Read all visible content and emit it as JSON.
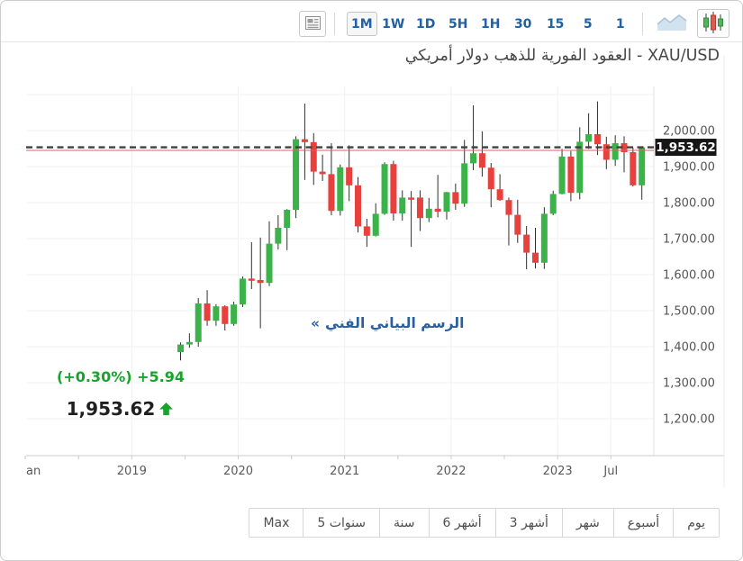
{
  "title": "XAU/USD - العقود الفورية للذهب دولار أمريكي",
  "toolbar": {
    "timeframes": [
      "1M",
      "1W",
      "1D",
      "5H",
      "1H",
      "30",
      "15",
      "5",
      "1"
    ],
    "active_timeframe": "1M",
    "chart_type_icons": [
      "news-icon",
      "area-chart-icon",
      "candlestick-icon"
    ],
    "active_chart_type": "candlestick-icon",
    "accent_color": "#2060a3"
  },
  "quote": {
    "change_percent": "(+0.30%)",
    "change": "+5.94",
    "last_price": "1,953.62",
    "up_color": "#18a42b"
  },
  "technical_link": {
    "arrow": "«",
    "text": "الرسم البياني الفني"
  },
  "price_tag": "1,953.62",
  "range_buttons": [
    "Max",
    "5 سنوات",
    "سنة",
    "6 أشهر",
    "3 أشهر",
    "شهر",
    "أسبوع",
    "يوم"
  ],
  "chart_data": {
    "type": "candlestick",
    "symbol": "XAU/USD",
    "interval": "monthly",
    "up_color": "#3bb34a",
    "down_color": "#e8403c",
    "current_price": 1953.62,
    "ylim": [
      1150,
      2110
    ],
    "y_ticks": [
      2000,
      1900,
      1800,
      1700,
      1600,
      1500,
      1400,
      1300,
      1200
    ],
    "x_ticks": [
      {
        "i": -17,
        "label": "an"
      },
      {
        "i": -5,
        "label": "2019"
      },
      {
        "i": 7,
        "label": "2020"
      },
      {
        "i": 19,
        "label": "2021"
      },
      {
        "i": 31,
        "label": "2022"
      },
      {
        "i": 43,
        "label": "2023"
      },
      {
        "i": 49,
        "label": "Jul"
      }
    ],
    "minor_tick_i": [
      -11,
      1,
      13,
      25,
      37
    ],
    "grid": true,
    "months": [
      "2019-06",
      "2019-07",
      "2019-08",
      "2019-09",
      "2019-10",
      "2019-11",
      "2019-12",
      "2020-01",
      "2020-02",
      "2020-03",
      "2020-04",
      "2020-05",
      "2020-06",
      "2020-07",
      "2020-08",
      "2020-09",
      "2020-10",
      "2020-11",
      "2020-12",
      "2021-01",
      "2021-02",
      "2021-03",
      "2021-04",
      "2021-05",
      "2021-06",
      "2021-07",
      "2021-08",
      "2021-09",
      "2021-10",
      "2021-11",
      "2021-12",
      "2022-01",
      "2022-02",
      "2022-03",
      "2022-04",
      "2022-05",
      "2022-06",
      "2022-07",
      "2022-08",
      "2022-09",
      "2022-10",
      "2022-11",
      "2022-12",
      "2023-01",
      "2023-02",
      "2023-03",
      "2023-04",
      "2023-05",
      "2023-06",
      "2023-07",
      "2023-08",
      "2023-09",
      "2023-10"
    ],
    "ohlc": [
      [
        1385,
        1412,
        1362,
        1406
      ],
      [
        1406,
        1437,
        1397,
        1413
      ],
      [
        1413,
        1535,
        1400,
        1520
      ],
      [
        1520,
        1557,
        1458,
        1472
      ],
      [
        1472,
        1518,
        1458,
        1512
      ],
      [
        1512,
        1515,
        1445,
        1463
      ],
      [
        1463,
        1525,
        1458,
        1517
      ],
      [
        1517,
        1595,
        1510,
        1589
      ],
      [
        1589,
        1690,
        1560,
        1585
      ],
      [
        1585,
        1703,
        1451,
        1577
      ],
      [
        1577,
        1748,
        1568,
        1686
      ],
      [
        1686,
        1765,
        1670,
        1730
      ],
      [
        1730,
        1782,
        1668,
        1780
      ],
      [
        1780,
        1984,
        1757,
        1976
      ],
      [
        1976,
        2075,
        1863,
        1968
      ],
      [
        1968,
        1993,
        1849,
        1886
      ],
      [
        1886,
        1933,
        1860,
        1879
      ],
      [
        1879,
        1965,
        1765,
        1777
      ],
      [
        1777,
        1906,
        1764,
        1898
      ],
      [
        1898,
        1959,
        1804,
        1848
      ],
      [
        1848,
        1871,
        1717,
        1734
      ],
      [
        1734,
        1755,
        1677,
        1708
      ],
      [
        1708,
        1798,
        1706,
        1769
      ],
      [
        1769,
        1912,
        1766,
        1907
      ],
      [
        1907,
        1916,
        1750,
        1770
      ],
      [
        1770,
        1834,
        1750,
        1814
      ],
      [
        1814,
        1832,
        1677,
        1813
      ],
      [
        1814,
        1834,
        1721,
        1757
      ],
      [
        1757,
        1813,
        1746,
        1783
      ],
      [
        1783,
        1877,
        1759,
        1775
      ],
      [
        1775,
        1830,
        1753,
        1829
      ],
      [
        1829,
        1853,
        1780,
        1797
      ],
      [
        1797,
        1974,
        1788,
        1909
      ],
      [
        1909,
        2070,
        1890,
        1937
      ],
      [
        1937,
        1998,
        1872,
        1897
      ],
      [
        1897,
        1910,
        1787,
        1837
      ],
      [
        1837,
        1879,
        1805,
        1807
      ],
      [
        1807,
        1814,
        1681,
        1766
      ],
      [
        1766,
        1808,
        1688,
        1711
      ],
      [
        1711,
        1735,
        1615,
        1661
      ],
      [
        1661,
        1730,
        1617,
        1633
      ],
      [
        1633,
        1787,
        1616,
        1769
      ],
      [
        1769,
        1833,
        1765,
        1824
      ],
      [
        1824,
        1949,
        1823,
        1928
      ],
      [
        1928,
        1943,
        1804,
        1827
      ],
      [
        1827,
        2009,
        1809,
        1969
      ],
      [
        1969,
        2048,
        1949,
        1990
      ],
      [
        1990,
        2081,
        1932,
        1962
      ],
      [
        1962,
        1983,
        1893,
        1919
      ],
      [
        1919,
        1987,
        1902,
        1965
      ],
      [
        1965,
        1984,
        1884,
        1940
      ],
      [
        1940,
        1953,
        1845,
        1848
      ],
      [
        1848,
        1955,
        1808,
        1953.62
      ]
    ]
  }
}
